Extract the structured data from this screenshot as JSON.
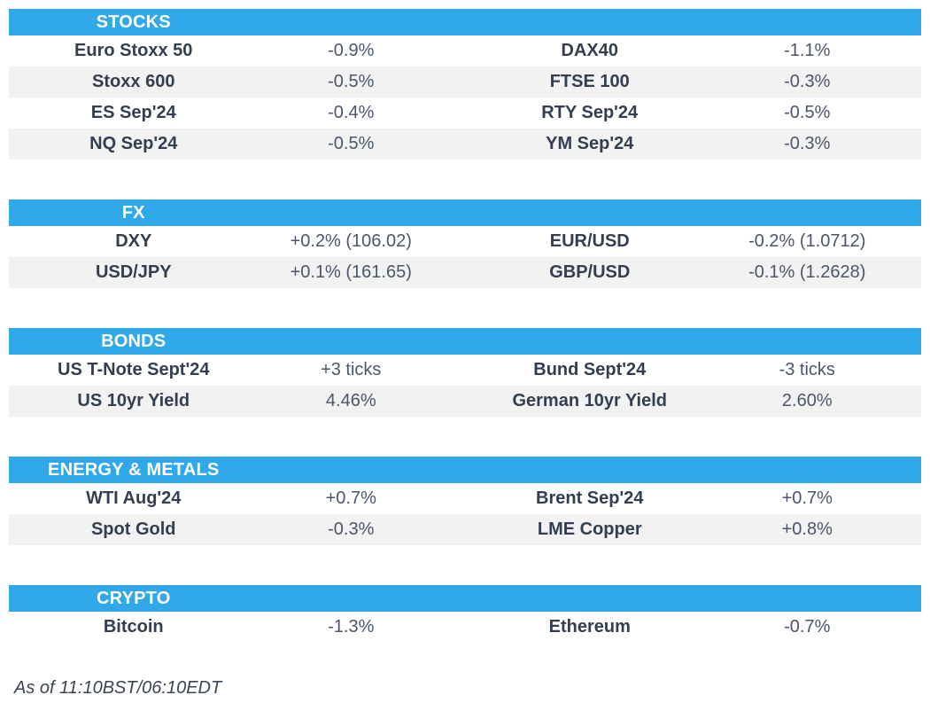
{
  "colors": {
    "accent": "#31A8EA",
    "stripe": "#F2F2F2",
    "instrument_text": "#333F50",
    "value_text": "#4C566A"
  },
  "sections": [
    {
      "title": "STOCKS",
      "rows": [
        {
          "left_name": "Euro Stoxx 50",
          "left_value": "-0.9%",
          "right_name": "DAX40",
          "right_value": "-1.1%"
        },
        {
          "left_name": "Stoxx 600",
          "left_value": "-0.5%",
          "right_name": "FTSE 100",
          "right_value": "-0.3%"
        },
        {
          "left_name": "ES Sep'24",
          "left_value": "-0.4%",
          "right_name": "RTY Sep'24",
          "right_value": "-0.5%"
        },
        {
          "left_name": "NQ Sep'24",
          "left_value": "-0.5%",
          "right_name": "YM Sep'24",
          "right_value": "-0.3%"
        }
      ]
    },
    {
      "title": "FX",
      "rows": [
        {
          "left_name": "DXY",
          "left_value": "+0.2% (106.02)",
          "right_name": "EUR/USD",
          "right_value": "-0.2% (1.0712)"
        },
        {
          "left_name": "USD/JPY",
          "left_value": "+0.1% (161.65)",
          "right_name": "GBP/USD",
          "right_value": "-0.1% (1.2628)"
        }
      ]
    },
    {
      "title": "BONDS",
      "rows": [
        {
          "left_name": "US T-Note Sept'24",
          "left_value": "+3 ticks",
          "right_name": "Bund Sept'24",
          "right_value": "-3 ticks"
        },
        {
          "left_name": "US 10yr Yield",
          "left_value": "4.46%",
          "right_name": "German 10yr Yield",
          "right_value": "2.60%"
        }
      ]
    },
    {
      "title": "ENERGY & METALS",
      "rows": [
        {
          "left_name": "WTI Aug'24",
          "left_value": "+0.7%",
          "right_name": "Brent Sep'24",
          "right_value": "+0.7%"
        },
        {
          "left_name": "Spot Gold",
          "left_value": "-0.3%",
          "right_name": "LME Copper",
          "right_value": "+0.8%"
        }
      ]
    },
    {
      "title": "CRYPTO",
      "rows": [
        {
          "left_name": "Bitcoin",
          "left_value": "-1.3%",
          "right_name": "Ethereum",
          "right_value": "-0.7%"
        }
      ]
    }
  ],
  "footer": {
    "timestamp_note": "As of 11:10BST/06:10EDT"
  }
}
